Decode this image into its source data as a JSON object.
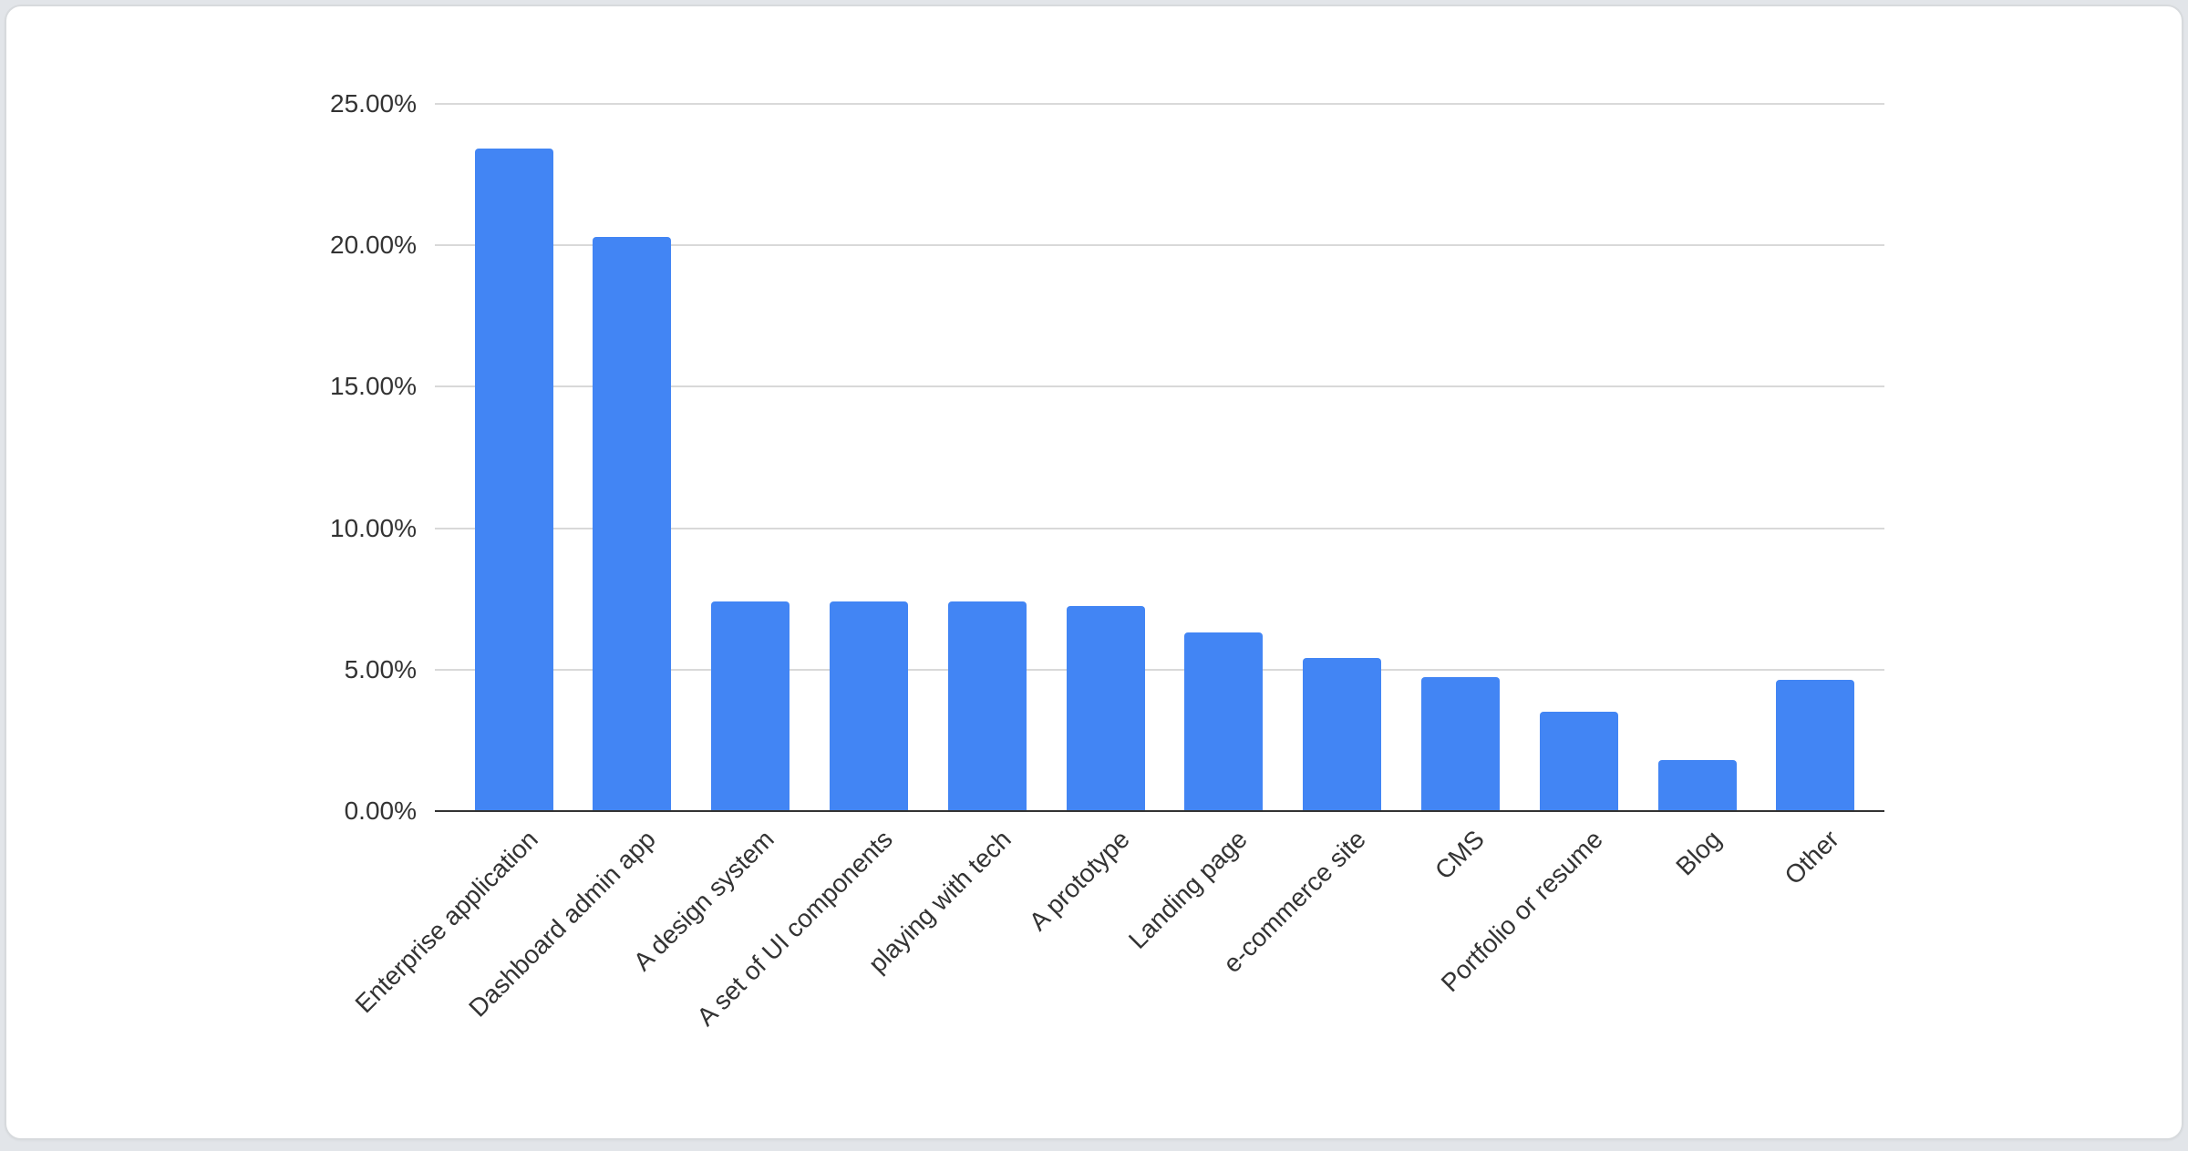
{
  "page": {
    "background_color": "#e2e5e9",
    "card": {
      "background_color": "#ffffff",
      "border_color": "#d7dadd"
    }
  },
  "chart_data": {
    "type": "bar",
    "title": "",
    "xlabel": "",
    "ylabel": "",
    "categories": [
      "Enterprise application",
      "Dashboard admin app",
      "A design system",
      "A set of UI components",
      "playing with tech",
      "A prototype",
      "Landing page",
      "e-commerce site",
      "CMS",
      "Portfolio or resume",
      "Blog",
      "Other"
    ],
    "values": [
      23.4,
      20.3,
      7.4,
      7.4,
      7.4,
      7.25,
      6.3,
      5.4,
      4.75,
      3.5,
      1.8,
      4.65
    ],
    "value_unit": "percent",
    "bar_color": "#4285f4",
    "ylim": [
      0,
      25
    ],
    "yticks": [
      {
        "value": 0,
        "label": "0.00%"
      },
      {
        "value": 5,
        "label": "5.00%"
      },
      {
        "value": 10,
        "label": "10.00%"
      },
      {
        "value": 15,
        "label": "15.00%"
      },
      {
        "value": 20,
        "label": "20.00%"
      },
      {
        "value": 25,
        "label": "25.00%"
      }
    ],
    "grid": "horizontal",
    "legend": "none",
    "x_tick_rotation_deg": 45,
    "axis_baseline_color": "#333333",
    "gridline_color": "#d9d9d9",
    "tick_label_color": "#333333"
  }
}
